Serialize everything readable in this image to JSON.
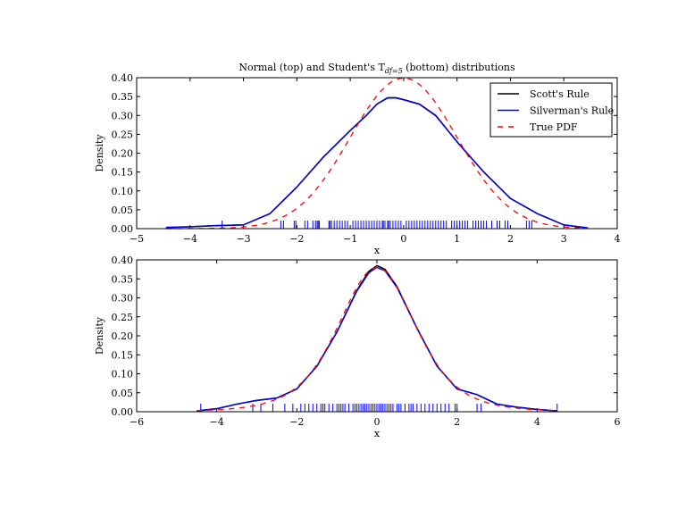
{
  "chart_data": [
    {
      "type": "line",
      "title": "Normal (top) and Student's T",
      "title_sub": "df=5",
      "title_end": " (bottom) distributions",
      "xlabel": "x",
      "ylabel": "Density",
      "xlim": [
        -5,
        4
      ],
      "ylim": [
        0,
        0.4
      ],
      "xticks": [
        "−5",
        "−4",
        "−3",
        "−2",
        "−1",
        "0",
        "1",
        "2",
        "3",
        "4"
      ],
      "yticks": [
        "0.00",
        "0.05",
        "0.10",
        "0.15",
        "0.20",
        "0.25",
        "0.30",
        "0.35",
        "0.40"
      ],
      "legend": {
        "placement": "top-right",
        "entries": [
          "Scott's Rule",
          "Silverman's Rule",
          "True PDF"
        ]
      },
      "true_pdf": "normal",
      "series": [
        {
          "name": "Scott's Rule",
          "color": "#000000",
          "x": [
            -4.45,
            -4,
            -3.5,
            -3,
            -2.5,
            -2,
            -1.5,
            -1,
            -0.7,
            -0.5,
            -0.3,
            -0.15,
            0,
            0.3,
            0.6,
            1,
            1.5,
            2,
            2.5,
            3,
            3.45
          ],
          "y": [
            0.003,
            0.005,
            0.008,
            0.01,
            0.04,
            0.11,
            0.19,
            0.26,
            0.3,
            0.33,
            0.347,
            0.347,
            0.342,
            0.33,
            0.3,
            0.23,
            0.15,
            0.08,
            0.04,
            0.01,
            0.002
          ]
        },
        {
          "name": "Silverman's Rule",
          "color": "#0000ff",
          "x": [
            -4.45,
            -4,
            -3.5,
            -3,
            -2.5,
            -2,
            -1.5,
            -1,
            -0.7,
            -0.5,
            -0.3,
            -0.15,
            0,
            0.3,
            0.6,
            1,
            1.5,
            2,
            2.5,
            3,
            3.45
          ],
          "y": [
            0.003,
            0.005,
            0.008,
            0.01,
            0.04,
            0.11,
            0.19,
            0.26,
            0.3,
            0.33,
            0.346,
            0.346,
            0.341,
            0.329,
            0.299,
            0.23,
            0.15,
            0.08,
            0.04,
            0.01,
            0.002
          ]
        }
      ],
      "rug": [
        -3.4,
        -2.3,
        -2.25,
        -2.05,
        -2.02,
        -1.85,
        -1.8,
        -1.7,
        -1.65,
        -1.62,
        -1.6,
        -1.58,
        -1.4,
        -1.38,
        -1.35,
        -1.3,
        -1.25,
        -1.2,
        -1.15,
        -1.1,
        -1.05,
        -0.95,
        -0.9,
        -0.85,
        -0.8,
        -0.75,
        -0.7,
        -0.65,
        -0.6,
        -0.55,
        -0.5,
        -0.45,
        -0.4,
        -0.38,
        -0.35,
        -0.3,
        -0.28,
        -0.25,
        -0.2,
        -0.15,
        -0.1,
        -0.05,
        0.05,
        0.1,
        0.15,
        0.2,
        0.25,
        0.3,
        0.35,
        0.4,
        0.45,
        0.5,
        0.55,
        0.6,
        0.65,
        0.7,
        0.75,
        0.8,
        0.9,
        0.95,
        1.0,
        1.05,
        1.1,
        1.15,
        1.2,
        1.3,
        1.35,
        1.4,
        1.45,
        1.5,
        1.55,
        1.65,
        1.75,
        1.8,
        1.9,
        1.95,
        2.3,
        2.35,
        2.4
      ]
    },
    {
      "type": "line",
      "title": "",
      "xlabel": "x",
      "ylabel": "Density",
      "xlim": [
        -6,
        6
      ],
      "ylim": [
        0,
        0.4
      ],
      "xticks": [
        "−6",
        "−4",
        "−2",
        "0",
        "2",
        "4",
        "6"
      ],
      "yticks": [
        "0.00",
        "0.05",
        "0.10",
        "0.15",
        "0.20",
        "0.25",
        "0.30",
        "0.35",
        "0.40"
      ],
      "true_pdf": "student_t_df5",
      "series": [
        {
          "name": "Scott's Rule",
          "color": "#000000",
          "x": [
            -4.5,
            -4,
            -3.5,
            -3,
            -2.5,
            -2,
            -1.5,
            -1,
            -0.5,
            -0.2,
            0,
            0.2,
            0.5,
            1,
            1.5,
            2,
            2.5,
            3,
            3.5,
            4,
            4.5
          ],
          "y": [
            0.002,
            0.008,
            0.02,
            0.03,
            0.036,
            0.06,
            0.12,
            0.21,
            0.32,
            0.37,
            0.385,
            0.375,
            0.33,
            0.22,
            0.12,
            0.06,
            0.045,
            0.02,
            0.012,
            0.006,
            0.002
          ]
        },
        {
          "name": "Silverman's Rule",
          "color": "#0000ff",
          "x": [
            -4.5,
            -4,
            -3.5,
            -3,
            -2.5,
            -2,
            -1.5,
            -1,
            -0.5,
            -0.2,
            0,
            0.2,
            0.5,
            1,
            1.5,
            2,
            2.5,
            3,
            3.5,
            4,
            4.5
          ],
          "y": [
            0.002,
            0.008,
            0.02,
            0.03,
            0.036,
            0.06,
            0.12,
            0.21,
            0.318,
            0.366,
            0.38,
            0.371,
            0.327,
            0.22,
            0.12,
            0.06,
            0.045,
            0.02,
            0.012,
            0.006,
            0.002
          ]
        }
      ],
      "rug": [
        -4.4,
        -3.1,
        -2.9,
        -2.6,
        -2.3,
        -2.1,
        -1.9,
        -1.8,
        -1.7,
        -1.6,
        -1.5,
        -1.4,
        -1.35,
        -1.3,
        -1.2,
        -1.1,
        -1.0,
        -0.95,
        -0.9,
        -0.85,
        -0.8,
        -0.7,
        -0.6,
        -0.55,
        -0.5,
        -0.45,
        -0.4,
        -0.35,
        -0.3,
        -0.25,
        -0.2,
        -0.15,
        -0.1,
        -0.05,
        0,
        0.05,
        0.1,
        0.15,
        0.2,
        0.25,
        0.3,
        0.35,
        0.4,
        0.5,
        0.55,
        0.6,
        0.7,
        0.8,
        0.85,
        0.9,
        1.0,
        1.1,
        1.2,
        1.3,
        1.4,
        1.5,
        1.6,
        1.7,
        1.8,
        1.95,
        2.0,
        2.5,
        2.6,
        4.5
      ]
    }
  ]
}
